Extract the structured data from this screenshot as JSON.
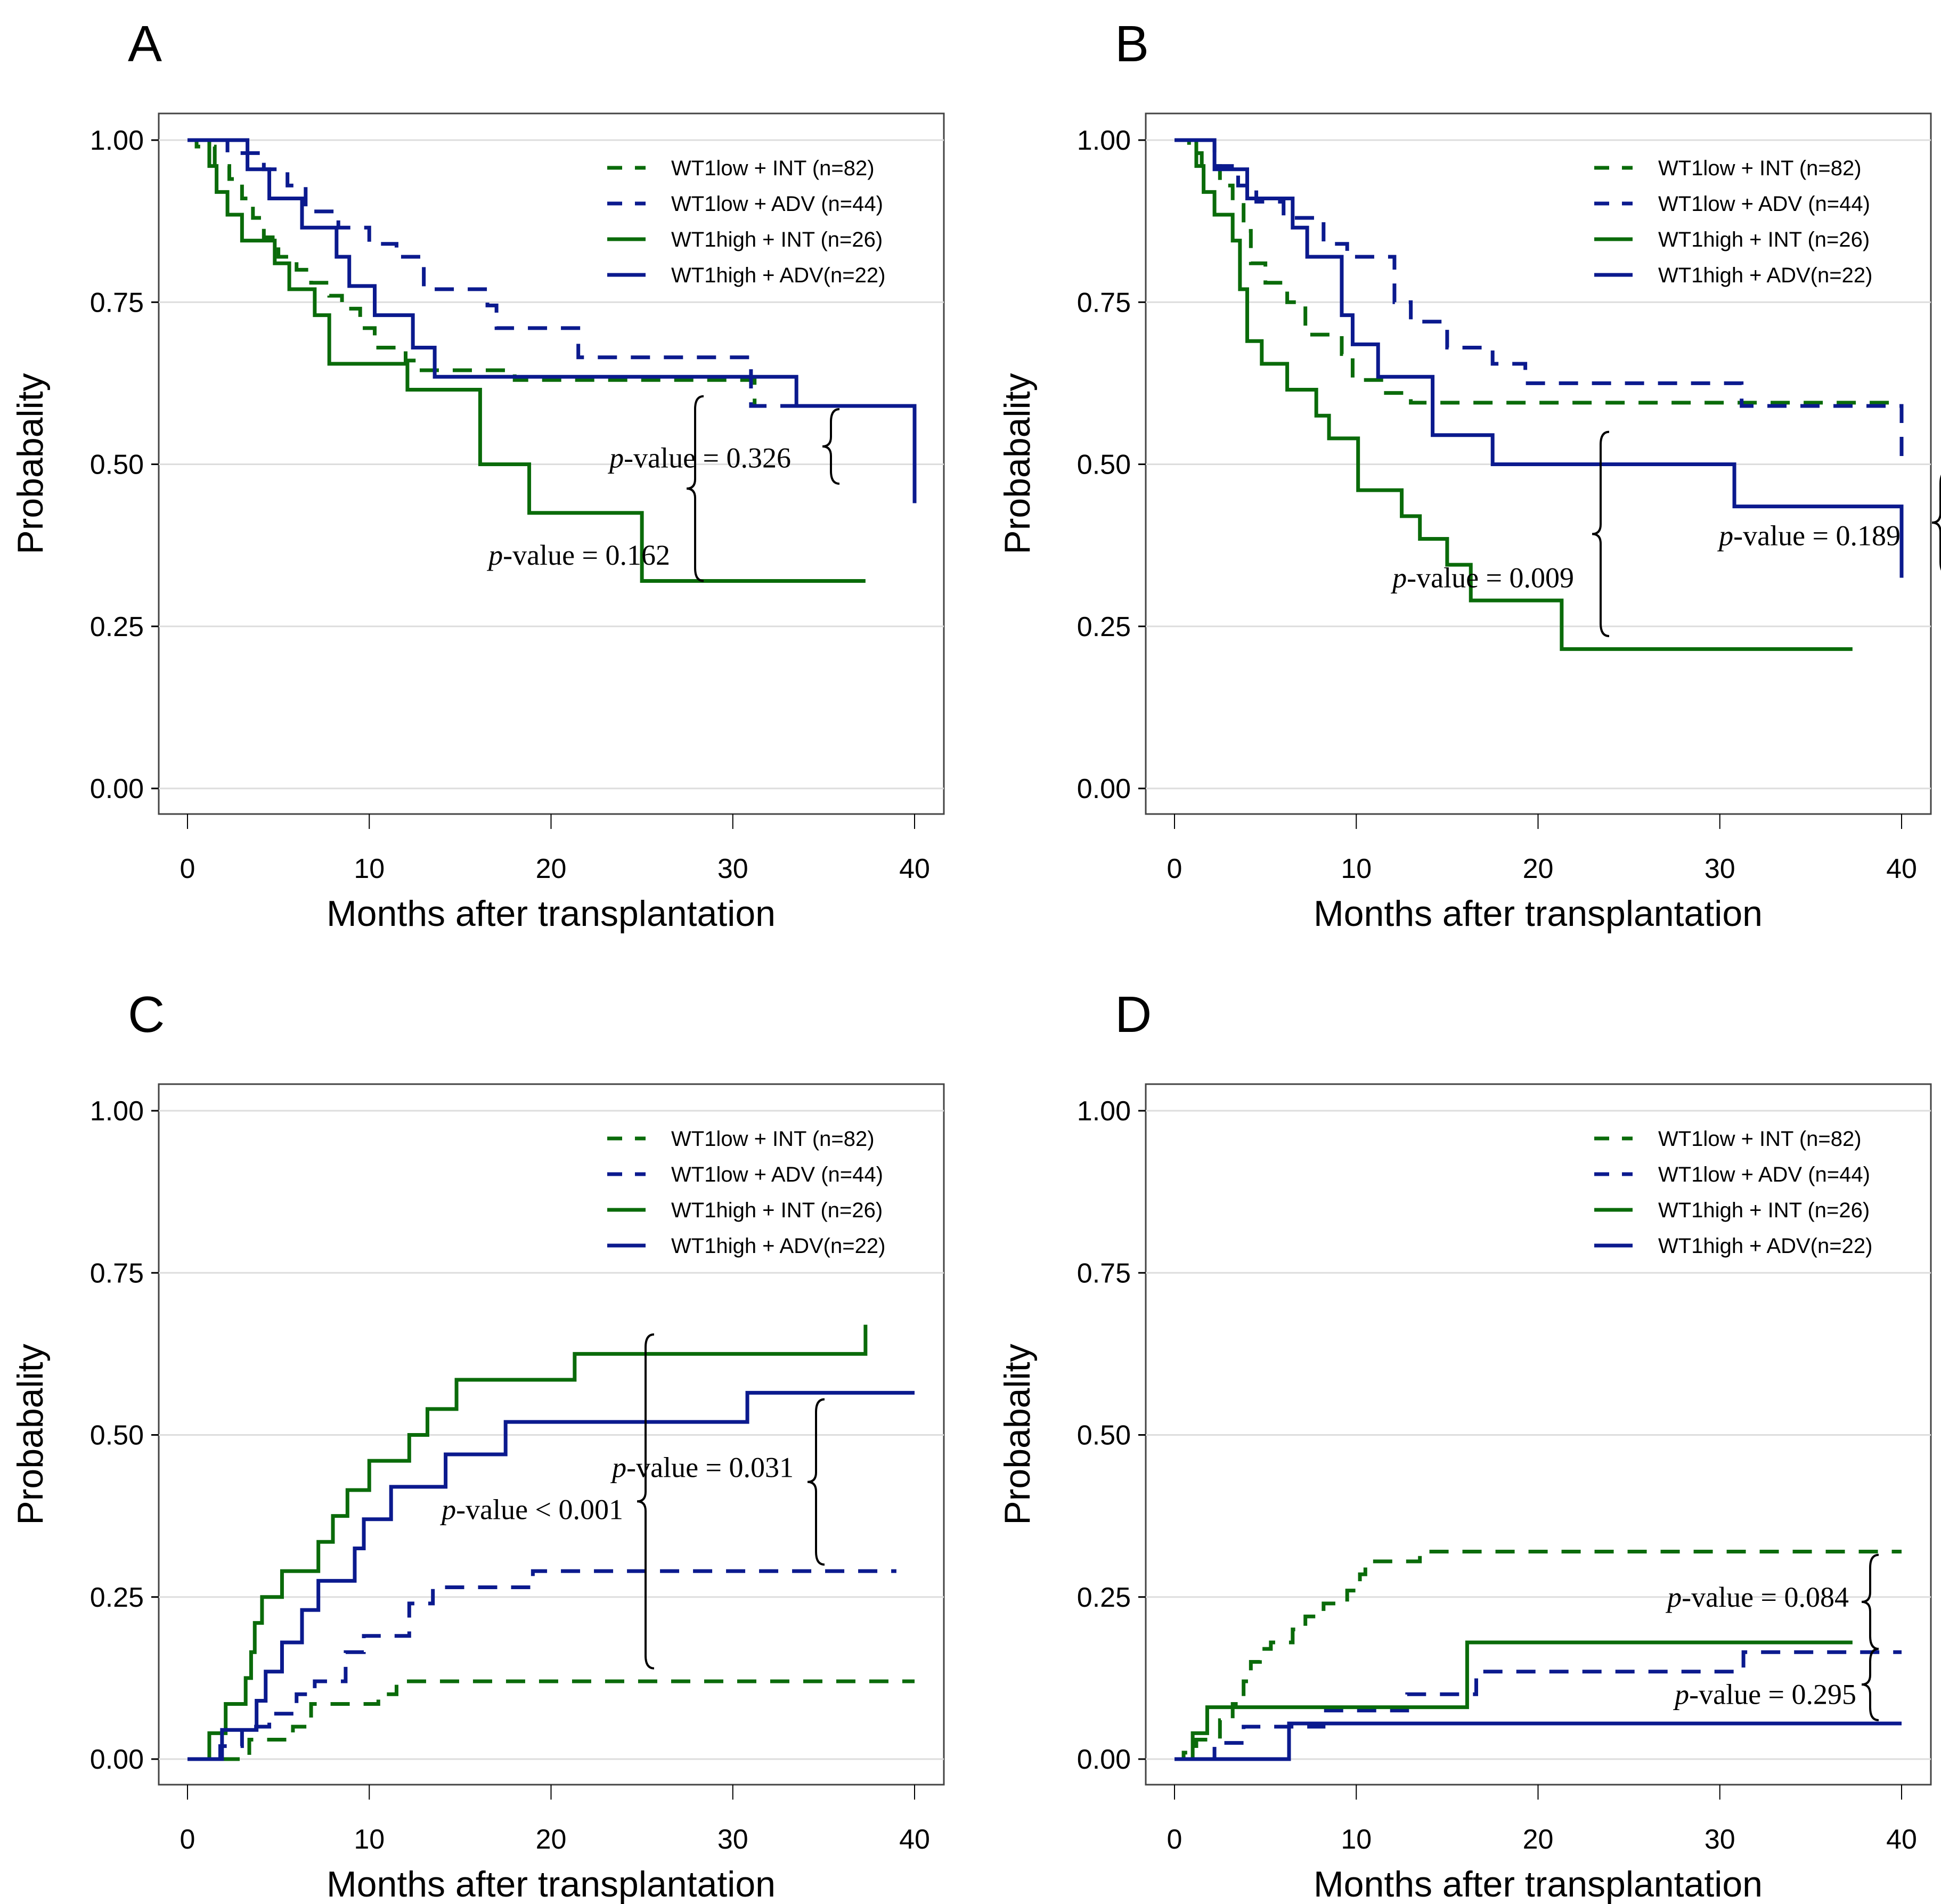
{
  "figure": {
    "colors": {
      "int": "#0a6b0a",
      "adv": "#0b1a8e",
      "grid": "#dddddd",
      "frame": "#444444"
    }
  },
  "chart_data": [
    {
      "panel": "A",
      "type": "line",
      "subtype": "kaplan-meier-survival",
      "xlabel": "Months after transplantation",
      "ylabel": "Probabality",
      "xlim": [
        0,
        40
      ],
      "ylim": [
        0,
        1
      ],
      "xticks": [
        "0",
        "10",
        "20",
        "30",
        "40"
      ],
      "yticks": [
        "0.00",
        "0.25",
        "0.50",
        "0.75",
        "1.00"
      ],
      "grid": true,
      "legend_position": "top-right",
      "series": [
        {
          "name": "WT1low + INT  (n=82)",
          "group": "int",
          "dash": true,
          "x": [
            0,
            0.5,
            1.5,
            2.3,
            3,
            3.6,
            4.2,
            5,
            6,
            6.8,
            7.8,
            8.5,
            9.5,
            10.3,
            12,
            12.7,
            15.5,
            18,
            31,
            31.2,
            40
          ],
          "y": [
            1.0,
            0.99,
            0.96,
            0.94,
            0.91,
            0.88,
            0.85,
            0.82,
            0.8,
            0.78,
            0.76,
            0.74,
            0.71,
            0.68,
            0.66,
            0.645,
            0.645,
            0.63,
            0.63,
            0.59,
            0.59
          ]
        },
        {
          "name": "WT1low + ADV (n=44)",
          "group": "adv",
          "dash": true,
          "x": [
            0,
            2.2,
            4.2,
            5.5,
            6.5,
            8.3,
            10,
            11.5,
            13,
            16.5,
            17,
            21.5,
            31,
            40
          ],
          "y": [
            1.0,
            0.98,
            0.955,
            0.93,
            0.89,
            0.865,
            0.84,
            0.82,
            0.77,
            0.745,
            0.71,
            0.665,
            0.59,
            0.59
          ]
        },
        {
          "name": "WT1high + INT (n=26)",
          "group": "int",
          "dash": false,
          "x": [
            0,
            1.2,
            1.6,
            2.2,
            3,
            4.8,
            5.6,
            7,
            7.8,
            12.1,
            16.1,
            18.8,
            25,
            37.3
          ],
          "y": [
            1.0,
            0.96,
            0.92,
            0.885,
            0.845,
            0.81,
            0.77,
            0.73,
            0.655,
            0.615,
            0.5,
            0.425,
            0.32,
            0.32
          ]
        },
        {
          "name": "WT1high + ADV(n=22)",
          "group": "adv",
          "dash": false,
          "x": [
            0,
            3.3,
            4.5,
            6.3,
            8.2,
            8.9,
            10.3,
            12.4,
            13.6,
            33.5,
            40
          ],
          "y": [
            1.0,
            0.955,
            0.91,
            0.865,
            0.82,
            0.775,
            0.73,
            0.68,
            0.635,
            0.59,
            0.44
          ]
        }
      ],
      "annotations": [
        {
          "text_prefix": "p",
          "text": "-value = 0.326",
          "compares": [
            "WT1low + ADV",
            "WT1high + ADV"
          ]
        },
        {
          "text_prefix": "p",
          "text": "-value = 0.162",
          "compares": [
            "WT1low + INT",
            "WT1high + INT"
          ]
        }
      ]
    },
    {
      "panel": "B",
      "type": "line",
      "subtype": "kaplan-meier-survival",
      "xlabel": "Months after transplantation",
      "ylabel": "Probabality",
      "xlim": [
        0,
        40
      ],
      "ylim": [
        0,
        1
      ],
      "xticks": [
        "0",
        "10",
        "20",
        "30",
        "40"
      ],
      "yticks": [
        "0.00",
        "0.25",
        "0.50",
        "0.75",
        "1.00"
      ],
      "grid": true,
      "legend_position": "top-right",
      "series": [
        {
          "name": "WT1low + INT  (n=82)",
          "group": "int",
          "dash": true,
          "x": [
            0,
            0.8,
            1.5,
            2.5,
            3.2,
            3.8,
            4.2,
            5,
            6.2,
            7.2,
            9.2,
            9.8,
            11.5,
            13,
            40
          ],
          "y": [
            1.0,
            0.98,
            0.96,
            0.93,
            0.9,
            0.86,
            0.81,
            0.78,
            0.75,
            0.7,
            0.67,
            0.63,
            0.61,
            0.595,
            0.595
          ]
        },
        {
          "name": "WT1low + ADV (n=44)",
          "group": "adv",
          "dash": true,
          "x": [
            0,
            2.2,
            3.5,
            4.5,
            6,
            8.2,
            9.5,
            12.1,
            13,
            15,
            17.5,
            19.3,
            31.2,
            40
          ],
          "y": [
            1.0,
            0.96,
            0.93,
            0.905,
            0.88,
            0.84,
            0.82,
            0.75,
            0.72,
            0.68,
            0.655,
            0.625,
            0.59,
            0.505
          ]
        },
        {
          "name": "WT1high + INT (n=26)",
          "group": "int",
          "dash": false,
          "x": [
            0,
            1.2,
            1.6,
            2.2,
            3.2,
            3.6,
            4.0,
            4.8,
            6.2,
            7.8,
            8.5,
            10.1,
            12.5,
            13.5,
            15,
            16.3,
            21.3,
            37.3
          ],
          "y": [
            1.0,
            0.96,
            0.92,
            0.885,
            0.845,
            0.77,
            0.69,
            0.655,
            0.615,
            0.575,
            0.54,
            0.46,
            0.42,
            0.385,
            0.345,
            0.29,
            0.215,
            0.215
          ]
        },
        {
          "name": "WT1high + ADV(n=22)",
          "group": "adv",
          "dash": false,
          "x": [
            0,
            2.2,
            4.0,
            6.5,
            7.3,
            9.2,
            9.8,
            11.2,
            14.2,
            17.5,
            30.8,
            40
          ],
          "y": [
            1.0,
            0.955,
            0.91,
            0.865,
            0.82,
            0.73,
            0.685,
            0.635,
            0.545,
            0.5,
            0.435,
            0.325
          ]
        }
      ],
      "annotations": [
        {
          "text_prefix": "p",
          "text": "-value = 0.189",
          "compares": [
            "WT1low + ADV",
            "WT1high + ADV"
          ]
        },
        {
          "text_prefix": "p",
          "text": "-value = 0.009",
          "compares": [
            "WT1low + INT",
            "WT1high + INT"
          ]
        }
      ]
    },
    {
      "panel": "C",
      "type": "line",
      "subtype": "cumulative-incidence",
      "xlabel": "Months after transplantation",
      "ylabel": "Probabality",
      "xlim": [
        0,
        40
      ],
      "ylim": [
        0,
        1
      ],
      "xticks": [
        "0",
        "10",
        "20",
        "30",
        "40"
      ],
      "yticks": [
        "0.00",
        "0.25",
        "0.50",
        "0.75",
        "1.00"
      ],
      "grid": true,
      "legend_position": "top-right",
      "series": [
        {
          "name": "WT1low + INT  (n=82)",
          "group": "int",
          "dash": true,
          "x": [
            0,
            2.8,
            3.4,
            5.8,
            6.8,
            10.5,
            11.5,
            40
          ],
          "y": [
            0.0,
            0.0,
            0.03,
            0.05,
            0.085,
            0.1,
            0.12,
            0.12
          ]
        },
        {
          "name": "WT1low + ADV (n=44)",
          "group": "adv",
          "dash": true,
          "x": [
            0,
            1.8,
            3,
            4.5,
            6,
            7,
            8.7,
            9.7,
            12.2,
            13.5,
            19,
            39
          ],
          "y": [
            0.0,
            0.02,
            0.05,
            0.07,
            0.1,
            0.12,
            0.165,
            0.19,
            0.24,
            0.265,
            0.29,
            0.29
          ]
        },
        {
          "name": "WT1high + INT (n=26)",
          "group": "int",
          "dash": false,
          "x": [
            0,
            1.2,
            2.1,
            3.2,
            3.5,
            3.7,
            4.1,
            5.2,
            7.2,
            8,
            8.8,
            10,
            12.2,
            13.2,
            14.8,
            21.3,
            37.3
          ],
          "y": [
            0.0,
            0.04,
            0.085,
            0.125,
            0.165,
            0.21,
            0.25,
            0.29,
            0.335,
            0.375,
            0.415,
            0.46,
            0.5,
            0.54,
            0.585,
            0.625,
            0.67
          ]
        },
        {
          "name": "WT1high + ADV(n=22)",
          "group": "adv",
          "dash": false,
          "x": [
            0,
            1.9,
            3.8,
            4.3,
            5.2,
            6.3,
            7.2,
            9.2,
            9.7,
            11.2,
            14.2,
            17.5,
            30.8,
            40
          ],
          "y": [
            0.0,
            0.045,
            0.09,
            0.135,
            0.18,
            0.23,
            0.275,
            0.325,
            0.37,
            0.42,
            0.47,
            0.52,
            0.565,
            0.565
          ]
        }
      ],
      "annotations": [
        {
          "text_prefix": "p",
          "text": "-value = 0.031",
          "compares": [
            "WT1low + ADV",
            "WT1high + ADV"
          ]
        },
        {
          "text_prefix": "p",
          "text": "-value < 0.001",
          "compares": [
            "WT1low + INT",
            "WT1high + INT"
          ]
        }
      ]
    },
    {
      "panel": "D",
      "type": "line",
      "subtype": "cumulative-incidence",
      "xlabel": "Months after transplantation",
      "ylabel": "Probabality",
      "xlim": [
        0,
        40
      ],
      "ylim": [
        0,
        1
      ],
      "xticks": [
        "0",
        "10",
        "20",
        "30",
        "40"
      ],
      "yticks": [
        "0.00",
        "0.25",
        "0.50",
        "0.75",
        "1.00"
      ],
      "grid": true,
      "legend_position": "top-right",
      "series": [
        {
          "name": "WT1low + INT  (n=82)",
          "group": "int",
          "dash": true,
          "x": [
            0,
            0.5,
            1.2,
            2.5,
            3.2,
            3.8,
            4.2,
            4.7,
            5.3,
            6.5,
            7.2,
            8.2,
            9.5,
            10.2,
            10.5,
            13.5,
            40
          ],
          "y": [
            0.0,
            0.01,
            0.03,
            0.06,
            0.085,
            0.12,
            0.15,
            0.17,
            0.18,
            0.2,
            0.22,
            0.24,
            0.26,
            0.285,
            0.305,
            0.32,
            0.32
          ]
        },
        {
          "name": "WT1low + ADV (n=44)",
          "group": "adv",
          "dash": true,
          "x": [
            0,
            2.2,
            3.8,
            8.2,
            12.8,
            16.6,
            31.3,
            40
          ],
          "y": [
            0.0,
            0.025,
            0.05,
            0.075,
            0.1,
            0.135,
            0.165,
            0.165
          ]
        },
        {
          "name": "WT1high + INT (n=26)",
          "group": "int",
          "dash": false,
          "x": [
            0,
            1.0,
            1.8,
            16.1,
            37.3
          ],
          "y": [
            0.0,
            0.04,
            0.08,
            0.18,
            0.18
          ]
        },
        {
          "name": "WT1high + ADV(n=22)",
          "group": "adv",
          "dash": false,
          "x": [
            0,
            6.3,
            40
          ],
          "y": [
            0.0,
            0.055,
            0.055
          ]
        }
      ],
      "annotations": [
        {
          "text_prefix": "p",
          "text": "-value = 0.084",
          "compares": [
            "WT1low + INT",
            "WT1high + INT"
          ]
        },
        {
          "text_prefix": "p",
          "text": "-value = 0.295",
          "compares": [
            "WT1low + ADV",
            "WT1high + ADV"
          ]
        }
      ]
    }
  ]
}
